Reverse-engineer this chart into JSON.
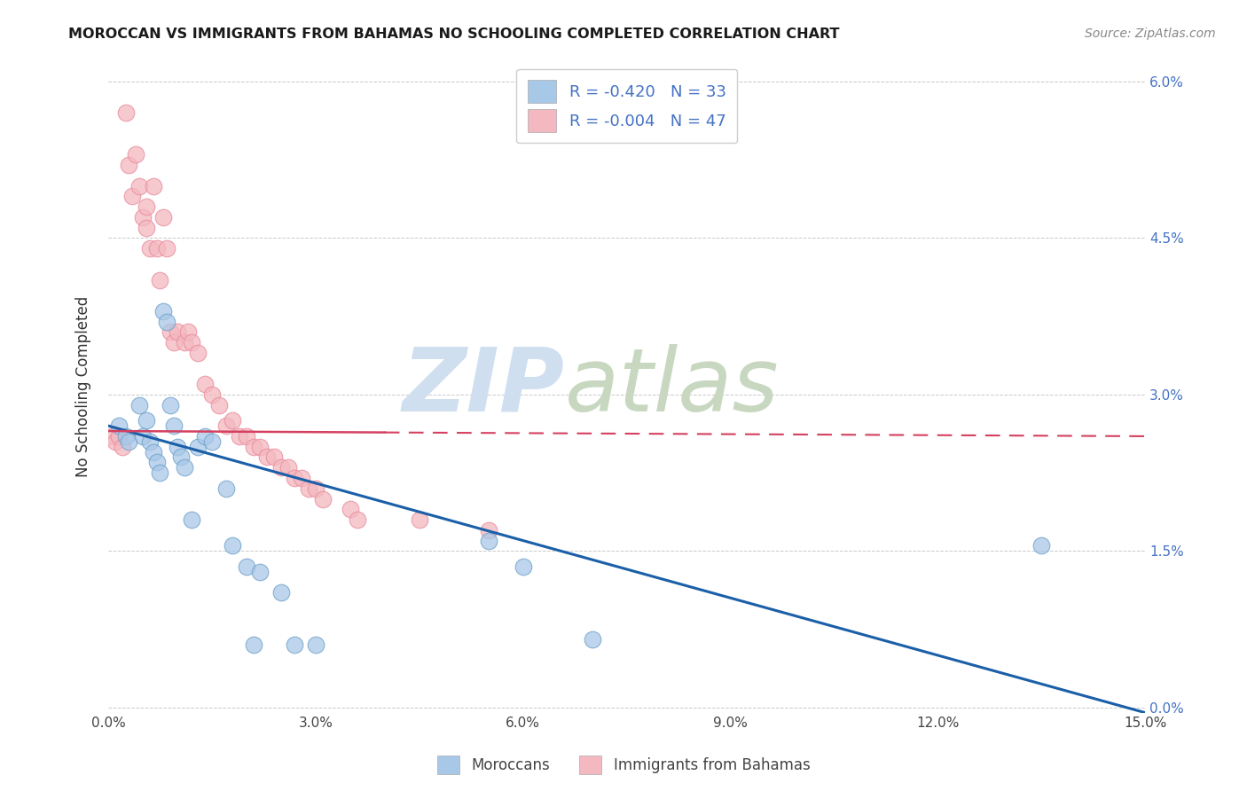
{
  "title": "MOROCCAN VS IMMIGRANTS FROM BAHAMAS NO SCHOOLING COMPLETED CORRELATION CHART",
  "source": "Source: ZipAtlas.com",
  "xlim": [
    0.0,
    15.0
  ],
  "ylim": [
    -0.05,
    6.2
  ],
  "xlabel_vals": [
    0.0,
    3.0,
    6.0,
    9.0,
    12.0,
    15.0
  ],
  "ylabel_vals": [
    0.0,
    1.5,
    3.0,
    4.5,
    6.0
  ],
  "legend_labels": [
    "Moroccans",
    "Immigrants from Bahamas"
  ],
  "R_moroccan": -0.42,
  "N_moroccan": 33,
  "R_bahamas": -0.004,
  "N_bahamas": 47,
  "moroccan_color": "#a8c8e8",
  "bahamas_color": "#f4b8c0",
  "moroccan_edge_color": "#6a9ec8",
  "bahamas_edge_color": "#e88898",
  "moroccan_line_color": "#1a5fa8",
  "bahamas_line_color": "#d44060",
  "watermark_zip_color": "#d0dff0",
  "watermark_atlas_color": "#c8d8c0",
  "moroccan_scatter_x": [
    0.15,
    0.25,
    0.3,
    0.45,
    0.5,
    0.55,
    0.6,
    0.65,
    0.7,
    0.75,
    0.8,
    0.85,
    0.9,
    0.95,
    1.0,
    1.05,
    1.1,
    1.2,
    1.3,
    1.4,
    1.5,
    1.7,
    1.8,
    2.0,
    2.1,
    2.2,
    2.5,
    2.7,
    3.0,
    5.5,
    6.0,
    7.0,
    13.5
  ],
  "moroccan_scatter_y": [
    2.7,
    2.6,
    2.55,
    2.9,
    2.6,
    2.75,
    2.55,
    2.45,
    2.35,
    2.25,
    3.8,
    3.7,
    2.9,
    2.7,
    2.5,
    2.4,
    2.3,
    1.8,
    2.5,
    2.6,
    2.55,
    2.1,
    1.55,
    1.35,
    0.6,
    1.3,
    1.1,
    0.6,
    0.6,
    1.6,
    1.35,
    0.65,
    1.55
  ],
  "bahamas_scatter_x": [
    0.05,
    0.1,
    0.15,
    0.2,
    0.25,
    0.3,
    0.35,
    0.4,
    0.45,
    0.5,
    0.55,
    0.55,
    0.6,
    0.65,
    0.7,
    0.75,
    0.8,
    0.85,
    0.9,
    0.95,
    1.0,
    1.1,
    1.15,
    1.2,
    1.3,
    1.4,
    1.5,
    1.6,
    1.7,
    1.8,
    1.9,
    2.0,
    2.1,
    2.2,
    2.3,
    2.4,
    2.5,
    2.6,
    2.7,
    2.8,
    2.9,
    3.0,
    3.1,
    3.5,
    3.6,
    4.5,
    5.5
  ],
  "bahamas_scatter_y": [
    2.6,
    2.55,
    2.6,
    2.5,
    5.7,
    5.2,
    4.9,
    5.3,
    5.0,
    4.7,
    4.8,
    4.6,
    4.4,
    5.0,
    4.4,
    4.1,
    4.7,
    4.4,
    3.6,
    3.5,
    3.6,
    3.5,
    3.6,
    3.5,
    3.4,
    3.1,
    3.0,
    2.9,
    2.7,
    2.75,
    2.6,
    2.6,
    2.5,
    2.5,
    2.4,
    2.4,
    2.3,
    2.3,
    2.2,
    2.2,
    2.1,
    2.1,
    2.0,
    1.9,
    1.8,
    1.8,
    1.7
  ],
  "bahamas_line_x_solid_end": 4.0,
  "bahamas_line_y_start": 2.63,
  "bahamas_line_y_end": 2.62
}
